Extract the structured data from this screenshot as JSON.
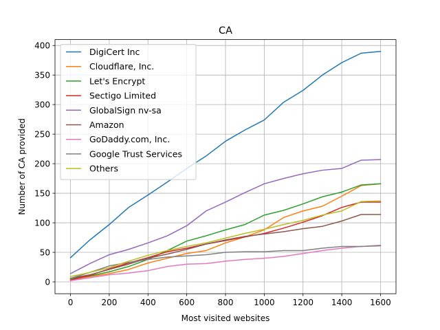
{
  "chart_data": {
    "type": "line",
    "title": "CA",
    "xlabel": "Most visited websites",
    "ylabel": "Number of CA provided",
    "xlim": [
      -80,
      1680
    ],
    "ylim": [
      -20,
      410
    ],
    "xticks": [
      0,
      200,
      400,
      600,
      800,
      1000,
      1200,
      1400,
      1600
    ],
    "yticks": [
      0,
      50,
      100,
      150,
      200,
      250,
      300,
      350,
      400
    ],
    "grid": true,
    "legend_position": "top-left",
    "x": [
      0,
      100,
      200,
      300,
      400,
      500,
      600,
      700,
      800,
      900,
      1000,
      1100,
      1200,
      1300,
      1400,
      1500,
      1600
    ],
    "series": [
      {
        "name": "DigiCert Inc",
        "color": "#1f77b4",
        "values": [
          41,
          71,
          97,
          126,
          147,
          169,
          192,
          213,
          238,
          257,
          274,
          304,
          324,
          350,
          371,
          387,
          390
        ]
      },
      {
        "name": "Cloudflare, Inc.",
        "color": "#ff7f0e",
        "values": [
          4,
          9,
          14,
          21,
          32,
          40,
          48,
          53,
          66,
          76,
          88,
          109,
          120,
          128,
          145,
          163,
          166
        ]
      },
      {
        "name": "Let's Encrypt",
        "color": "#2ca02c",
        "values": [
          5,
          10,
          17,
          26,
          38,
          53,
          69,
          78,
          88,
          97,
          113,
          121,
          132,
          144,
          152,
          164,
          166
        ]
      },
      {
        "name": "Sectigo Limited",
        "color": "#d62728",
        "values": [
          3,
          11,
          22,
          32,
          41,
          51,
          57,
          64,
          70,
          76,
          82,
          91,
          101,
          112,
          126,
          135,
          135
        ]
      },
      {
        "name": "GlobalSign nv-sa",
        "color": "#9467bd",
        "values": [
          14,
          31,
          46,
          55,
          66,
          78,
          95,
          120,
          135,
          151,
          166,
          175,
          183,
          189,
          192,
          206,
          207
        ]
      },
      {
        "name": "Amazon",
        "color": "#8c564b",
        "values": [
          6,
          12,
          21,
          30,
          40,
          47,
          55,
          64,
          71,
          77,
          81,
          85,
          90,
          94,
          103,
          114,
          114
        ]
      },
      {
        "name": "GoDaddy.com, Inc.",
        "color": "#e377c2",
        "values": [
          2,
          7,
          12,
          15,
          19,
          26,
          30,
          31,
          35,
          38,
          40,
          43,
          48,
          53,
          57,
          60,
          62
        ]
      },
      {
        "name": "Google Trust Services",
        "color": "#7f7f7f",
        "values": [
          6,
          16,
          27,
          33,
          38,
          42,
          44,
          46,
          50,
          51,
          51,
          53,
          53,
          57,
          60,
          60,
          61
        ]
      },
      {
        "name": "Others",
        "color": "#bcbd22",
        "values": [
          9,
          16,
          24,
          35,
          45,
          53,
          60,
          66,
          74,
          82,
          89,
          97,
          104,
          113,
          120,
          136,
          137
        ]
      }
    ]
  }
}
